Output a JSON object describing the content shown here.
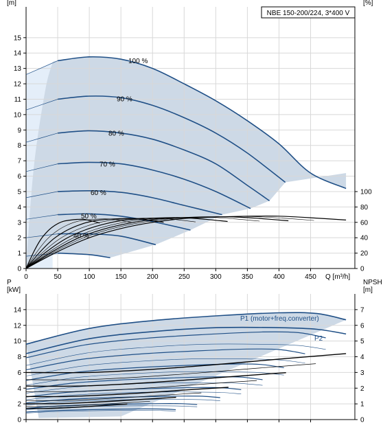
{
  "chart_data": [
    {
      "type": "line",
      "title": "NBE 150-200/224, 3*400 V",
      "xlabel": "Q [m³/h]",
      "ylabel_left": "H\n[m]",
      "ylabel_right": "eta\n[%]",
      "xlim": [
        0,
        520
      ],
      "ylim": [
        0,
        17
      ],
      "y2lim": [
        0,
        100
      ],
      "xticks": [
        0,
        50,
        100,
        150,
        200,
        250,
        300,
        350,
        400,
        450
      ],
      "yticks": [
        0,
        1,
        2,
        3,
        4,
        5,
        6,
        7,
        8,
        9,
        10,
        11,
        12,
        13,
        14,
        15
      ],
      "y2ticks": [
        0,
        20,
        40,
        60,
        80,
        100
      ],
      "grid": true,
      "colors": {
        "curve": "#1f4f86",
        "fill": "#cdd9e6",
        "light_fill": "#e4eef9",
        "eta": "#000000"
      },
      "head_curves": [
        {
          "label": "100 %",
          "points": [
            [
              0,
              12.6
            ],
            [
              50,
              13.5
            ],
            [
              100,
              13.75
            ],
            [
              150,
              13.6
            ],
            [
              200,
              13.0
            ],
            [
              250,
              12.0
            ],
            [
              300,
              10.9
            ],
            [
              350,
              9.6
            ],
            [
              400,
              8.1
            ],
            [
              450,
              6.2
            ],
            [
              506,
              5.2
            ]
          ]
        },
        {
          "label": "90 %",
          "points": [
            [
              0,
              10.3
            ],
            [
              50,
              11.0
            ],
            [
              100,
              11.2
            ],
            [
              150,
              11.1
            ],
            [
              200,
              10.6
            ],
            [
              250,
              9.8
            ],
            [
              300,
              8.8
            ],
            [
              350,
              7.5
            ],
            [
              410,
              5.6
            ]
          ]
        },
        {
          "label": "80 %",
          "points": [
            [
              0,
              8.2
            ],
            [
              50,
              8.8
            ],
            [
              100,
              8.95
            ],
            [
              150,
              8.8
            ],
            [
              200,
              8.4
            ],
            [
              250,
              7.7
            ],
            [
              300,
              6.8
            ],
            [
              350,
              5.4
            ],
            [
              385,
              4.4
            ]
          ]
        },
        {
          "label": "70 %",
          "points": [
            [
              0,
              6.3
            ],
            [
              50,
              6.8
            ],
            [
              100,
              6.9
            ],
            [
              150,
              6.8
            ],
            [
              200,
              6.4
            ],
            [
              250,
              5.8
            ],
            [
              300,
              5.0
            ],
            [
              355,
              3.9
            ]
          ]
        },
        {
          "label": "60 %",
          "points": [
            [
              0,
              4.6
            ],
            [
              50,
              5.0
            ],
            [
              100,
              5.05
            ],
            [
              150,
              4.95
            ],
            [
              200,
              4.6
            ],
            [
              250,
              4.1
            ],
            [
              310,
              3.5
            ]
          ]
        },
        {
          "label": "50 %",
          "points": [
            [
              0,
              3.2
            ],
            [
              50,
              3.5
            ],
            [
              100,
              3.55
            ],
            [
              150,
              3.4
            ],
            [
              200,
              3.05
            ],
            [
              260,
              2.5
            ]
          ]
        },
        {
          "label": "40 %",
          "points": [
            [
              0,
              2.0
            ],
            [
              50,
              2.25
            ],
            [
              100,
              2.25
            ],
            [
              150,
              2.1
            ],
            [
              205,
              1.55
            ]
          ]
        },
        {
          "label": "",
          "points": [
            [
              0,
              0.8
            ],
            [
              50,
              1.0
            ],
            [
              100,
              0.9
            ],
            [
              133,
              0.7
            ]
          ]
        }
      ],
      "eta_curve": {
        "points": [
          [
            0,
            0
          ],
          [
            50,
            22
          ],
          [
            100,
            40
          ],
          [
            150,
            52
          ],
          [
            200,
            60
          ],
          [
            250,
            65
          ],
          [
            300,
            67
          ],
          [
            350,
            68
          ],
          [
            400,
            68
          ],
          [
            450,
            66
          ],
          [
            506,
            63
          ]
        ]
      }
    },
    {
      "type": "line",
      "xlabel": "",
      "ylabel_left": "P\n[kW]",
      "ylabel_right": "NPSH\n[m]",
      "xlim": [
        0,
        520
      ],
      "ylim": [
        0,
        16
      ],
      "y2lim": [
        0,
        8
      ],
      "yticks": [
        0,
        2,
        4,
        6,
        8,
        10,
        12,
        14
      ],
      "y2ticks": [
        0,
        1,
        2,
        3,
        4,
        5,
        6,
        7
      ],
      "grid": true,
      "series": [
        {
          "name": "P1 (motor+freq.converter)",
          "points": [
            [
              0,
              9.6
            ],
            [
              100,
              11.6
            ],
            [
              200,
              12.6
            ],
            [
              300,
              13.2
            ],
            [
              400,
              13.6
            ],
            [
              460,
              13.5
            ],
            [
              506,
              12.7
            ]
          ]
        },
        {
          "name": "P2",
          "points": [
            [
              0,
              8.4
            ],
            [
              100,
              10.3
            ],
            [
              200,
              11.2
            ],
            [
              300,
              11.7
            ],
            [
              400,
              11.7
            ],
            [
              460,
              11.5
            ],
            [
              506,
              10.9
            ]
          ]
        }
      ],
      "npsh_curve": {
        "points": [
          [
            0,
            3.0
          ],
          [
            100,
            3.0
          ],
          [
            200,
            3.2
          ],
          [
            300,
            3.5
          ],
          [
            400,
            3.85
          ],
          [
            506,
            4.2
          ]
        ]
      }
    }
  ]
}
